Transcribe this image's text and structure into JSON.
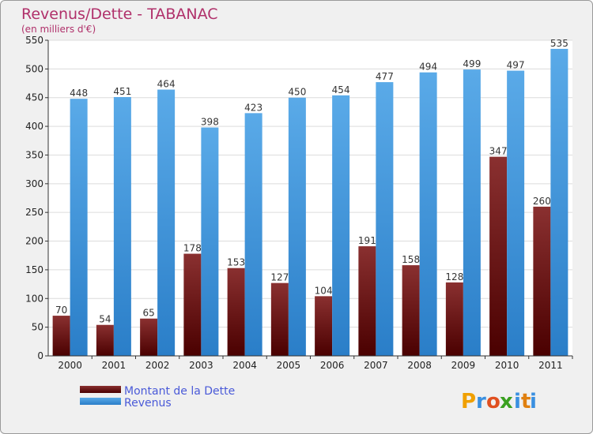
{
  "chart_data": {
    "type": "bar",
    "title": "Revenus/Dette - TABANAC",
    "subtitle": "(en milliers d'€)",
    "categories": [
      "2000",
      "2001",
      "2002",
      "2003",
      "2004",
      "2005",
      "2006",
      "2007",
      "2008",
      "2009",
      "2010",
      "2011"
    ],
    "series": [
      {
        "name": "Montant de la Dette",
        "color": "#6e0f12",
        "values": [
          70,
          54,
          65,
          178,
          153,
          127,
          104,
          191,
          158,
          128,
          347,
          260
        ]
      },
      {
        "name": "Revenus",
        "color": "#3d97dc",
        "values": [
          448,
          451,
          464,
          398,
          423,
          450,
          454,
          477,
          494,
          499,
          497,
          535
        ]
      }
    ],
    "ylim": [
      0,
      550
    ],
    "yticks": [
      0,
      50,
      100,
      150,
      200,
      250,
      300,
      350,
      400,
      450,
      500,
      550
    ],
    "grid": true,
    "legend": "bottom-left"
  },
  "logo": {
    "text": "Proxiti",
    "letters": [
      "P",
      "r",
      "o",
      "x",
      "i",
      "t",
      "i"
    ]
  }
}
